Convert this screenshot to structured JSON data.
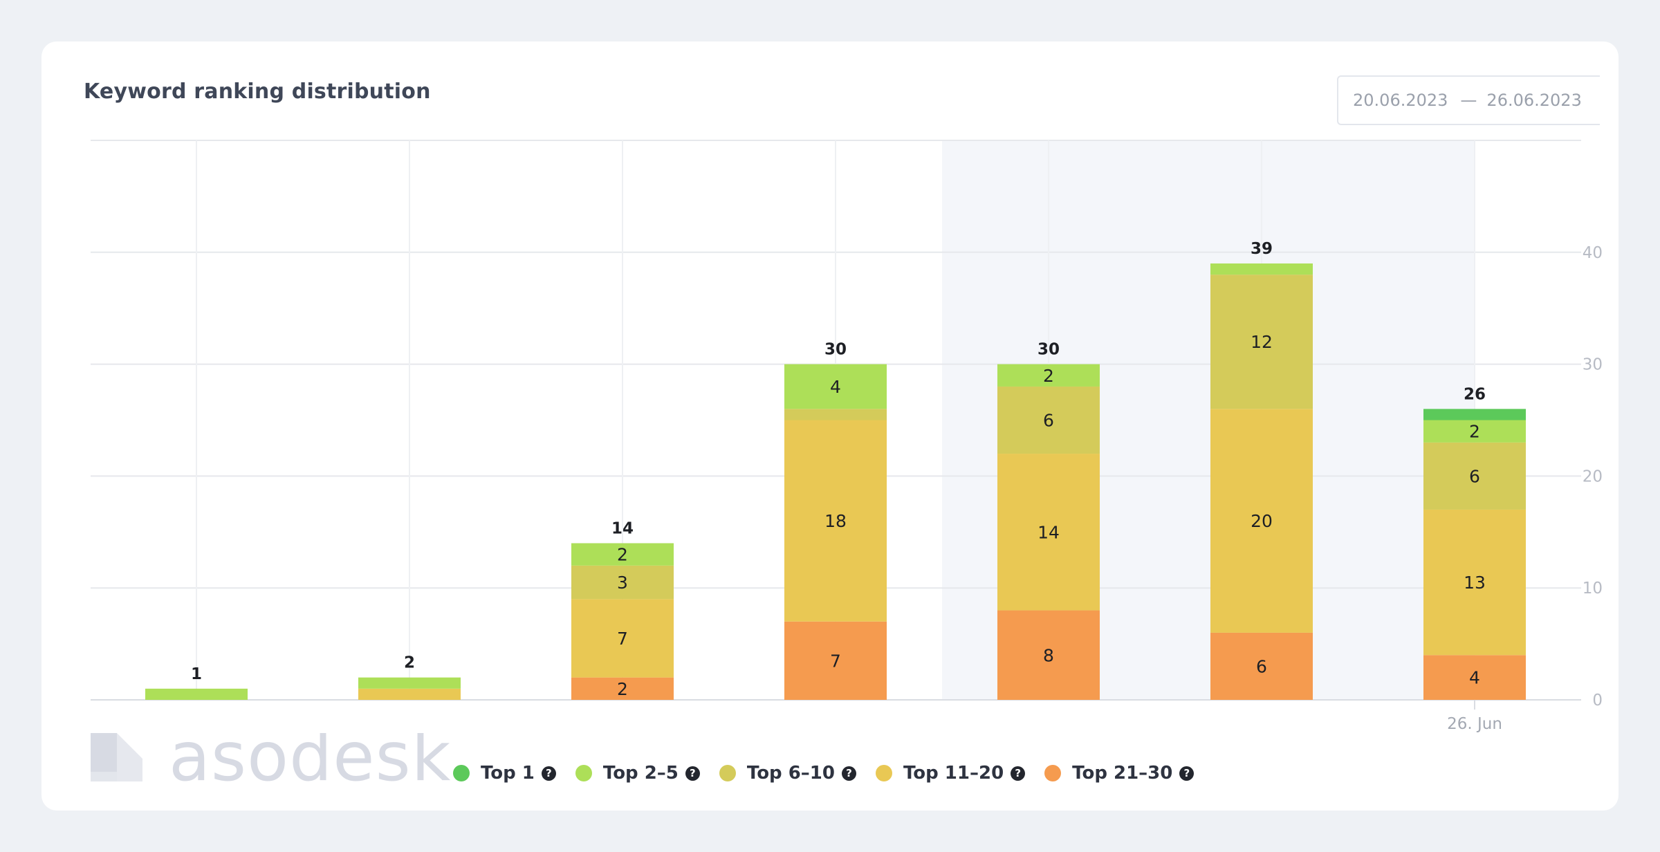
{
  "header": {
    "title": "Keyword ranking distribution",
    "date_from": "20.06.2023",
    "date_sep": "—",
    "date_to": "26.06.2023"
  },
  "watermark": {
    "text": "asodesk"
  },
  "colors": {
    "top1": "#5cc95a",
    "top2_5": "#addf58",
    "top6_10": "#d4cb5a",
    "top11_20": "#e9c854",
    "top21_30": "#f59b4f",
    "grid": "#e6e8ec",
    "highlight": "#f4f6fa"
  },
  "legend": [
    {
      "key": "top1",
      "label": "Top 1",
      "color": "#5cc95a"
    },
    {
      "key": "top2_5",
      "label": "Top 2–5",
      "color": "#addf58"
    },
    {
      "key": "top6_10",
      "label": "Top 6–10",
      "color": "#d4cb5a"
    },
    {
      "key": "top11_20",
      "label": "Top 11–20",
      "color": "#e9c854"
    },
    {
      "key": "top21_30",
      "label": "Top 21–30",
      "color": "#f59b4f"
    }
  ],
  "chart_data": {
    "type": "bar",
    "stacked": true,
    "title": "Keyword ranking distribution",
    "x_tick_labels": [
      "",
      "",
      "",
      "",
      "",
      "",
      "26. Jun"
    ],
    "y_axis_position": "right",
    "ylim": [
      0,
      50
    ],
    "yticks": [
      0,
      10,
      20,
      30,
      40
    ],
    "grid": true,
    "legend_position": "bottom",
    "highlighted_range": [
      4,
      6
    ],
    "totals": [
      1,
      2,
      14,
      30,
      30,
      39,
      26
    ],
    "series": [
      {
        "name": "Top 21–30",
        "values": [
          0,
          0,
          2,
          7,
          8,
          6,
          4
        ]
      },
      {
        "name": "Top 11–20",
        "values": [
          0,
          1,
          7,
          18,
          14,
          20,
          13
        ]
      },
      {
        "name": "Top 6–10",
        "values": [
          0,
          0,
          3,
          1,
          6,
          12,
          6
        ]
      },
      {
        "name": "Top 2–5",
        "values": [
          1,
          1,
          2,
          4,
          2,
          1,
          2
        ]
      },
      {
        "name": "Top 1",
        "values": [
          0,
          0,
          0,
          0,
          0,
          0,
          1
        ]
      }
    ]
  }
}
